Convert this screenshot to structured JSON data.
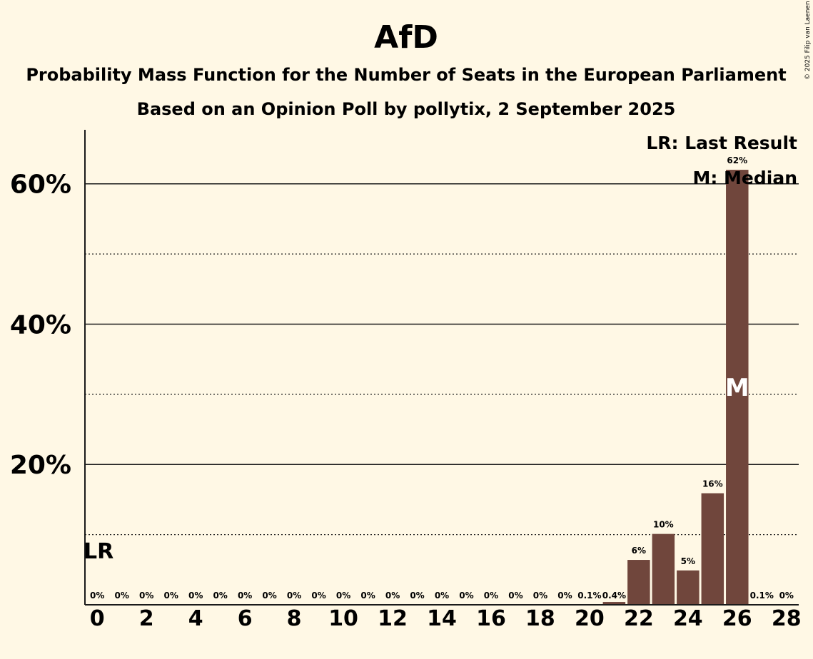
{
  "chart_data": {
    "type": "bar",
    "title": "AfD",
    "subtitle": "Probability Mass Function for the Number of Seats in the European Parliament",
    "subtitle2": "Based on an Opinion Poll by pollytix, 2 September 2025",
    "copyright": "© 2025 Filip van Laenen",
    "x": [
      0,
      1,
      2,
      3,
      4,
      5,
      6,
      7,
      8,
      9,
      10,
      11,
      12,
      13,
      14,
      15,
      16,
      17,
      18,
      19,
      20,
      21,
      22,
      23,
      24,
      25,
      26,
      27,
      28
    ],
    "values": [
      0,
      0,
      0,
      0,
      0,
      0,
      0,
      0,
      0,
      0,
      0,
      0,
      0,
      0,
      0,
      0,
      0,
      0,
      0,
      0,
      0.1,
      0.4,
      6.4,
      10.1,
      4.9,
      15.9,
      62,
      0.1,
      0
    ],
    "value_labels": [
      "0%",
      "0%",
      "0%",
      "0%",
      "0%",
      "0%",
      "0%",
      "0%",
      "0%",
      "0%",
      "0%",
      "0%",
      "0%",
      "0%",
      "0%",
      "0%",
      "0%",
      "0%",
      "0%",
      "0%",
      "0.1%",
      "0.4%",
      "6%",
      "10%",
      "5%",
      "16%",
      "62%",
      "0.1%",
      "0%"
    ],
    "xticks": [
      0,
      2,
      4,
      6,
      8,
      10,
      12,
      14,
      16,
      18,
      20,
      22,
      24,
      26,
      28
    ],
    "yticks": [
      {
        "value": 20,
        "label": "20%"
      },
      {
        "value": 40,
        "label": "40%"
      },
      {
        "value": 60,
        "label": "60%"
      }
    ],
    "ylim": [
      0,
      67.7
    ],
    "dotted_gridlines": [
      10,
      30,
      50
    ],
    "last_result_seat": 0,
    "last_result_label": "LR",
    "median_seat": 26,
    "median_label": "M",
    "legend": [
      "LR: Last Result",
      "M: Median"
    ],
    "legend_position": "top-right",
    "bar_color": "#70463C",
    "background_color": "#FFF8E5"
  }
}
